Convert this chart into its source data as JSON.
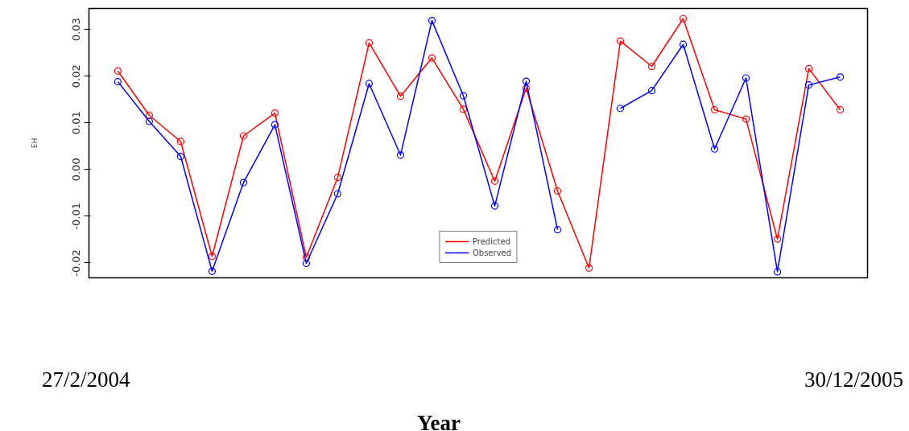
{
  "chart_data": {
    "type": "line",
    "ylabel": "EH",
    "categories": [
      null,
      null,
      null,
      null,
      null,
      null,
      null,
      null,
      null,
      null,
      null,
      null,
      null,
      null,
      null,
      null,
      null,
      null,
      null,
      null,
      null,
      null,
      null,
      null
    ],
    "series": [
      {
        "name": "Predicted",
        "color": "#ff0000",
        "values": [
          0.0211,
          0.0116,
          0.006,
          -0.0186,
          0.0072,
          0.0121,
          -0.0188,
          -0.0017,
          0.0271,
          0.0157,
          0.0239,
          0.0129,
          -0.0025,
          0.0174,
          -0.0046,
          -0.0211,
          0.0275,
          0.0221,
          0.0323,
          0.0128,
          0.0108,
          -0.0149,
          0.0216,
          0.0128
        ]
      },
      {
        "name": "Observed",
        "color": "#0000ff",
        "values": [
          0.0188,
          0.0103,
          0.0028,
          -0.0218,
          -0.0028,
          0.0096,
          -0.0201,
          -0.0052,
          0.0184,
          0.0031,
          0.0319,
          0.0158,
          -0.0078,
          0.0189,
          -0.0129,
          null,
          0.0131,
          0.0169,
          0.0268,
          0.0044,
          0.0196,
          -0.0219,
          0.0181,
          0.0198
        ]
      }
    ],
    "ylim": [
      -0.0232,
      0.0345
    ],
    "yticks": [
      {
        "value": -0.02,
        "label": "-0.02"
      },
      {
        "value": -0.01,
        "label": "-0.01"
      },
      {
        "value": 0,
        "label": "0.00"
      },
      {
        "value": 0.01,
        "label": "0.01"
      },
      {
        "value": 0.02,
        "label": "0.02"
      },
      {
        "value": 0.03,
        "label": "0.03"
      }
    ],
    "tick_labels": "y",
    "grid": false,
    "legend": "bottom",
    "marker": "circle",
    "line_style": "solid",
    "annotations": [
      "27/2/2004",
      "30/12/2005",
      "Year"
    ]
  }
}
